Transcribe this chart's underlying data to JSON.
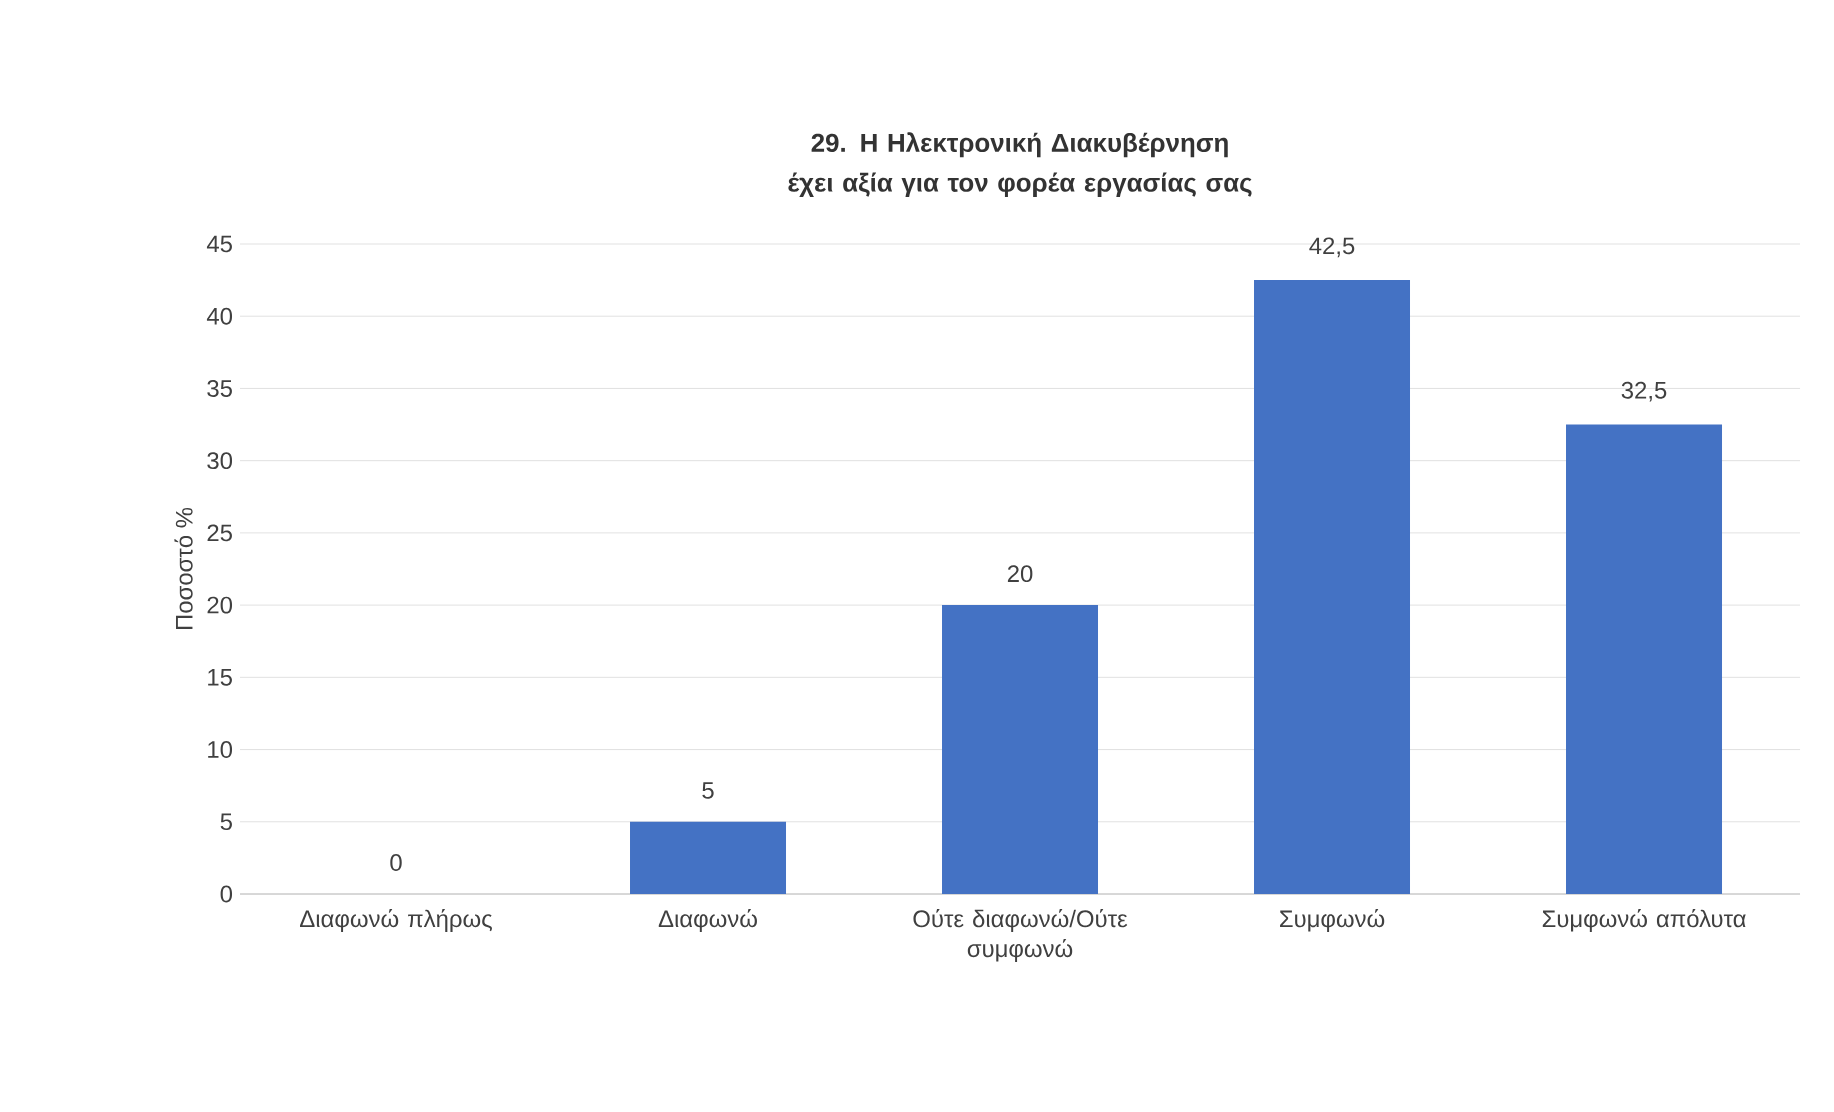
{
  "chart_data": {
    "type": "bar",
    "title": "29. Η Ηλεκτρονική Διακυβέρνηση έχει αξία για τον φορέα εργασίας σας",
    "ylabel": "Ποσοστό %",
    "categories": [
      "Διαφωνώ πλήρως",
      "Διαφωνώ",
      "Ούτε διαφωνώ/Ούτε συμφωνώ",
      "Συμφωνώ",
      "Συμφωνώ απόλυτα"
    ],
    "values": [
      0,
      5,
      20,
      42.5,
      32.5
    ],
    "value_labels": [
      "0",
      "5",
      "20",
      "42,5",
      "32,5"
    ],
    "color": "#4472c4",
    "ylim": [
      0,
      45
    ],
    "yticks": [
      0,
      5,
      10,
      15,
      20,
      25,
      30,
      35,
      40,
      45
    ],
    "grid": "y"
  }
}
